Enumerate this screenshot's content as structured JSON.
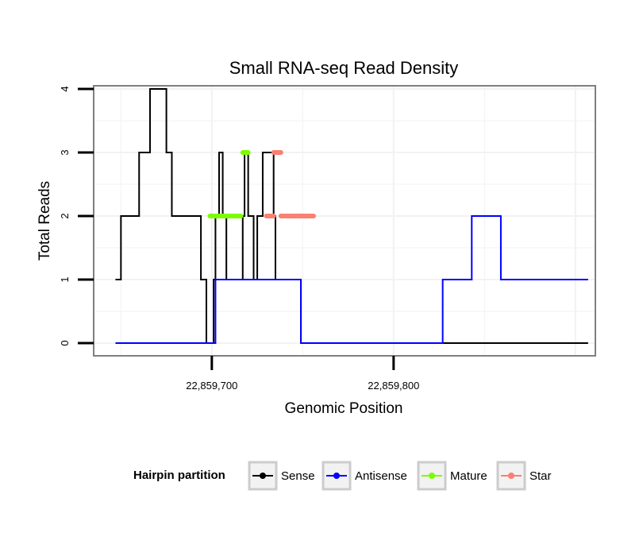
{
  "chart_data": {
    "type": "line",
    "title": "Small RNA-seq Read Density",
    "xlabel": "Genomic Position",
    "ylabel": "Total Reads",
    "xlim": [
      22859635,
      22859911
    ],
    "ylim": [
      -0.2,
      4.05
    ],
    "x_ticks": [
      {
        "value": 22859700,
        "label": "22,859,700"
      },
      {
        "value": 22859800,
        "label": "22,859,800"
      }
    ],
    "y_ticks": [
      {
        "value": 0,
        "label": "0"
      },
      {
        "value": 1,
        "label": "1"
      },
      {
        "value": 2,
        "label": "2"
      },
      {
        "value": 3,
        "label": "3"
      },
      {
        "value": 4,
        "label": "4"
      }
    ],
    "grid": true,
    "legend": {
      "title": "Hairpin partition",
      "position": "bottom",
      "entries": [
        {
          "name": "Sense",
          "color": "#000000"
        },
        {
          "name": "Antisense",
          "color": "#0000ff"
        },
        {
          "name": "Mature",
          "color": "#7cfc00"
        },
        {
          "name": "Star",
          "color": "#fa8072"
        }
      ]
    },
    "series": [
      {
        "name": "Sense",
        "color": "#000000",
        "style": "step",
        "x": [
          22859647,
          22859650,
          22859660,
          22859666,
          22859675,
          22859678,
          22859694,
          22859697,
          22859701,
          22859702,
          22859704,
          22859706,
          22859708,
          22859717,
          22859718,
          22859720,
          22859723,
          22859725,
          22859728,
          22859734,
          22859735,
          22859749,
          22859751,
          22859752,
          22859907
        ],
        "values": [
          1,
          2,
          3,
          4,
          3,
          2,
          1,
          0,
          1,
          2,
          3,
          2,
          1,
          2,
          3,
          2,
          1,
          2,
          3,
          2,
          1,
          0,
          0,
          0,
          0
        ]
      },
      {
        "name": "Antisense",
        "color": "#0000ff",
        "style": "step",
        "x": [
          22859647,
          22859697,
          22859701,
          22859702,
          22859704,
          22859706,
          22859708,
          22859717,
          22859718,
          22859720,
          22859723,
          22859725,
          22859728,
          22859734,
          22859735,
          22859749,
          22859751,
          22859752,
          22859825,
          22859827,
          22859843,
          22859859,
          22859907
        ],
        "values": [
          0,
          0,
          0,
          1,
          1,
          1,
          1,
          1,
          1,
          1,
          1,
          1,
          1,
          1,
          1,
          0,
          0,
          0,
          0,
          1,
          2,
          1,
          1
        ]
      },
      {
        "name": "Mature",
        "color": "#7cfc00",
        "style": "segments",
        "segments": [
          {
            "x0": 22859699,
            "x1": 22859716,
            "y": 2
          },
          {
            "x0": 22859717,
            "x1": 22859720,
            "y": 3
          }
        ]
      },
      {
        "name": "Star",
        "color": "#fa8072",
        "style": "segments",
        "segments": [
          {
            "x0": 22859730,
            "x1": 22859734,
            "y": 2
          },
          {
            "x0": 22859734,
            "x1": 22859738,
            "y": 3
          },
          {
            "x0": 22859738,
            "x1": 22859756,
            "y": 2
          }
        ]
      }
    ]
  }
}
